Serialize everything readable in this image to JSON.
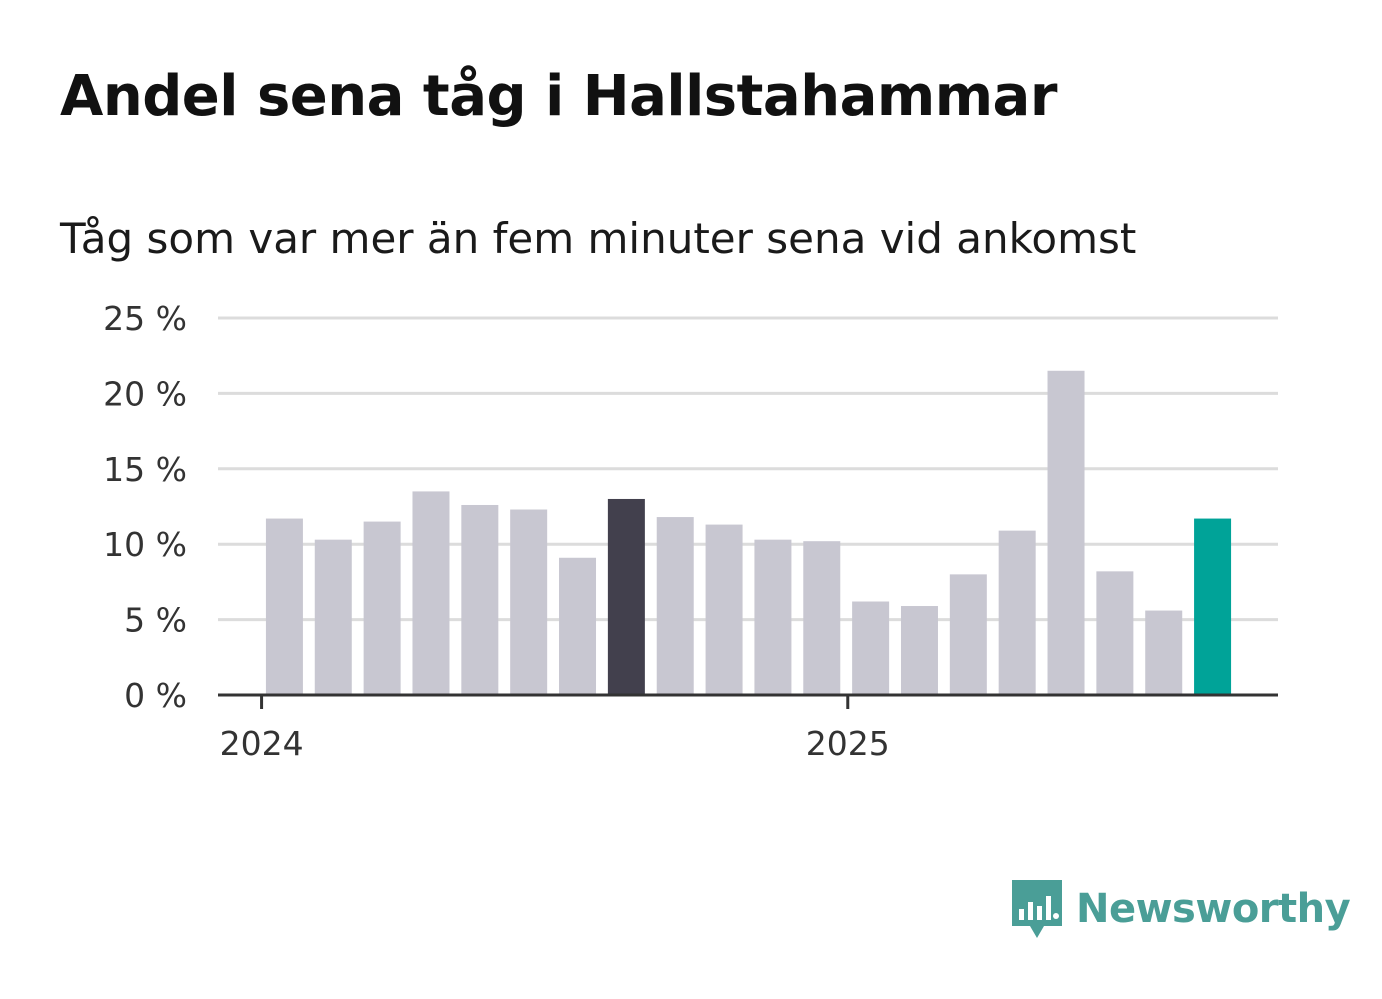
{
  "title": "Andel sena tåg i Hallstahammar",
  "subtitle": "Tåg som var mer än fem minuter sena vid ankomst",
  "brand": {
    "name": "Newsworthy",
    "color": "#4a9e97",
    "icon": "bar-chart-speech-bubble-icon"
  },
  "colors": {
    "default_bar": "#c8c7d1",
    "highlight_bar": "#42404d",
    "latest_bar": "#00a398",
    "grid": "#dcdcdc",
    "axis": "#333333"
  },
  "chart_data": {
    "type": "bar",
    "categories": [
      "2024-01",
      "2024-02",
      "2024-03",
      "2024-04",
      "2024-05",
      "2024-06",
      "2024-07",
      "2024-08",
      "2024-09",
      "2024-10",
      "2024-11",
      "2024-12",
      "2025-01",
      "2025-02",
      "2025-03",
      "2025-04",
      "2025-05",
      "2025-06",
      "2025-07",
      "2025-08"
    ],
    "values": [
      11.7,
      10.3,
      11.5,
      13.5,
      12.6,
      12.3,
      9.1,
      13.0,
      11.8,
      11.3,
      10.3,
      10.2,
      6.2,
      5.9,
      8.0,
      10.9,
      21.5,
      8.2,
      5.6,
      11.7
    ],
    "highlight_index": 7,
    "latest_index": 19,
    "ylim": [
      0,
      25
    ],
    "yticks": [
      0,
      5,
      10,
      15,
      20,
      25
    ],
    "ytick_labels": [
      "0 %",
      "5 %",
      "10 %",
      "15 %",
      "20 %",
      "25 %"
    ],
    "xtick_labels": [
      {
        "label": "2024",
        "category": "2024-01"
      },
      {
        "label": "2025",
        "category": "2025-01"
      }
    ],
    "grid": true,
    "legend": "none",
    "xlabel": "",
    "ylabel": ""
  }
}
